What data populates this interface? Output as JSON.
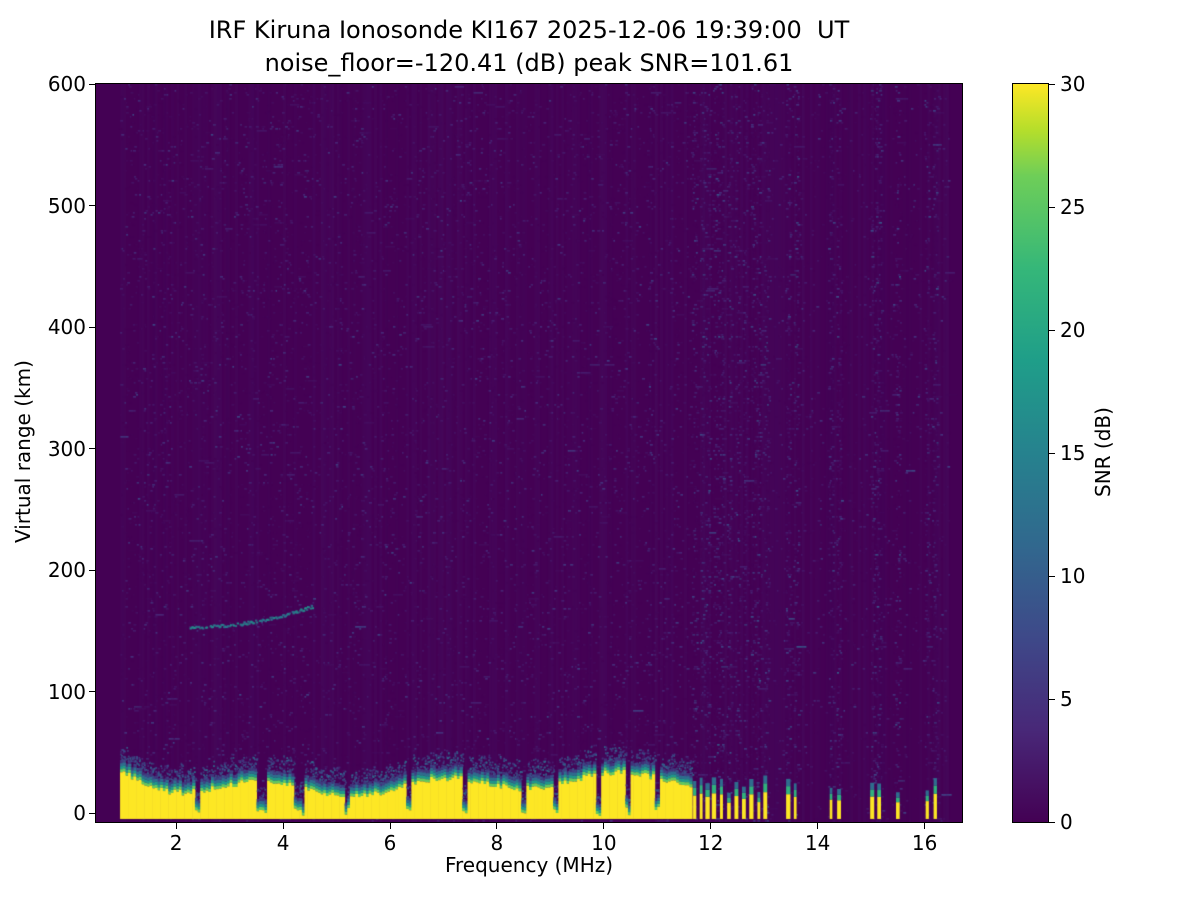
{
  "figure": {
    "title": "IRF Kiruna Ionosonde KI167 2025-12-06 19:39:00  UT",
    "subtitle": "noise_floor=-120.41 (dB) peak SNR=101.61"
  },
  "chart_data": {
    "type": "heatmap",
    "title": "IRF Kiruna Ionosonde KI167 2025-12-06 19:39:00  UT",
    "subtitle": "noise_floor=-120.41 (dB) peak SNR=101.61",
    "xlabel": "Frequency (MHz)",
    "ylabel": "Virtual range (km)",
    "xlim": [
      0.5,
      16.7
    ],
    "ylim": [
      -7,
      600
    ],
    "xticks": [
      2,
      4,
      6,
      8,
      10,
      12,
      14,
      16
    ],
    "yticks": [
      0,
      100,
      200,
      300,
      400,
      500,
      600
    ],
    "freq_range_mhz": [
      0.95,
      16.45
    ],
    "noise_floor_db": -120.41,
    "peak_snr_db": 101.61,
    "colorbar": {
      "label": "SNR (dB)",
      "min": 0,
      "max": 30,
      "ticks": [
        0,
        5,
        10,
        15,
        20,
        25,
        30
      ],
      "colormap": "viridis",
      "color_min": "#440154",
      "color_max": "#fde725"
    },
    "features": {
      "background_noise": {
        "snr_db_range": [
          0,
          8
        ],
        "description": "sparse speckled receiver noise over whole plot"
      },
      "ground_clutter": {
        "freq_start_mhz": 0.95,
        "freq_end_mhz": 11.62,
        "top_km_mean": 30,
        "top_km_jitter": 10,
        "snr_db": 30,
        "notch_freqs_mhz": [
          2.35,
          3.5,
          3.62,
          4.2,
          4.32,
          5.15,
          6.3,
          7.35,
          8.45,
          9.05,
          9.9,
          10.45,
          11.0
        ]
      },
      "echo_trace": {
        "freq_start_mhz": 2.25,
        "freq_end_mhz": 4.55,
        "range_start_km": 154,
        "range_end_km": 171,
        "snr_db": 14
      },
      "interference_stripes_mhz": [
        11.7,
        11.82,
        11.94,
        12.06,
        12.2,
        12.34,
        12.48,
        12.62,
        12.76,
        12.9,
        13.02,
        13.45,
        13.58,
        14.25,
        14.4,
        15.02,
        15.15,
        15.5,
        16.05,
        16.2
      ]
    }
  }
}
